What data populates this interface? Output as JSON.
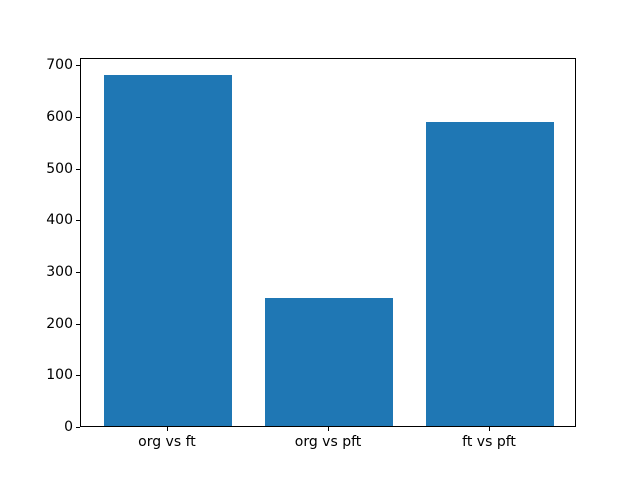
{
  "figure": {
    "background": "#ffffff"
  },
  "chart_data": {
    "type": "bar",
    "title": "",
    "categories": [
      "org vs ft",
      "org vs pft",
      "ft vs pft"
    ],
    "values": [
      680,
      247,
      588
    ],
    "xlabel": "",
    "ylabel": "",
    "ylim": [
      0,
      714
    ],
    "yticks": [
      0,
      100,
      200,
      300,
      400,
      500,
      600,
      700
    ],
    "bar_color": "#1f77b4",
    "axis_color": "#000000",
    "text_color": "#000000",
    "grid": false,
    "legend": "none"
  }
}
